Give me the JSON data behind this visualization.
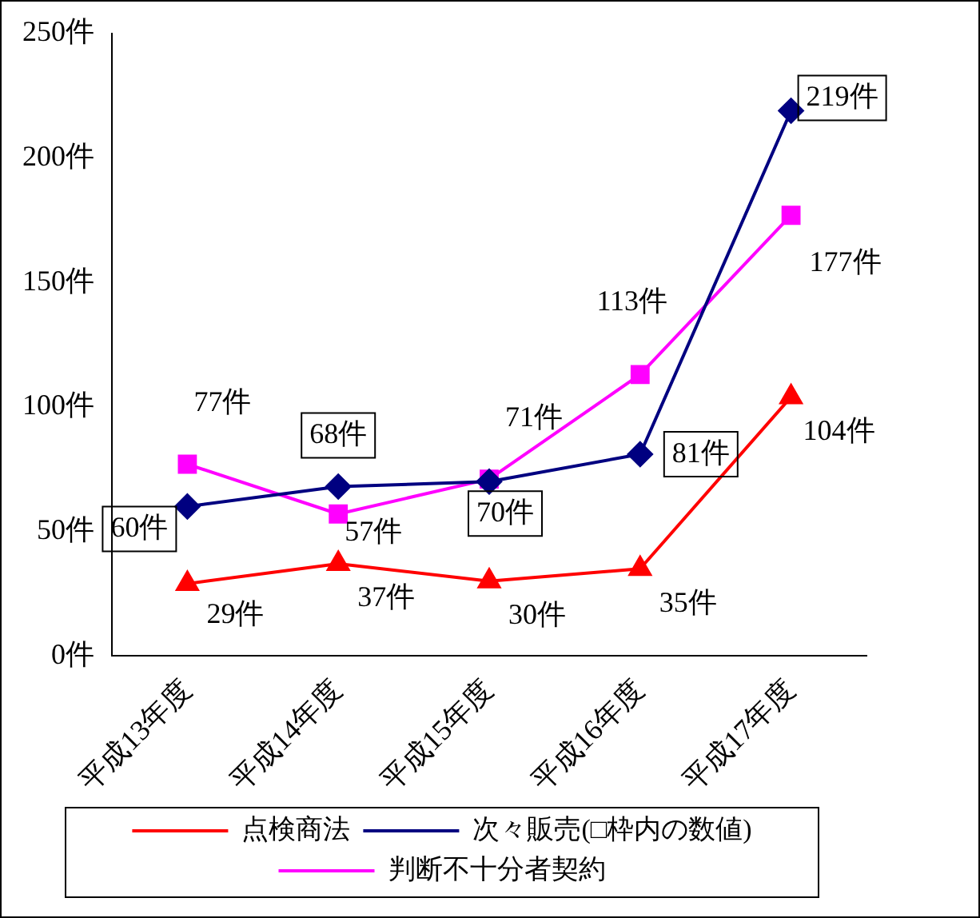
{
  "chart_data": {
    "type": "line",
    "categories": [
      "平成13年度",
      "平成14年度",
      "平成15年度",
      "平成16年度",
      "平成17年度"
    ],
    "series": [
      {
        "name": "点検商法",
        "color": "#ff0000",
        "marker": "triangle",
        "values": [
          29,
          37,
          30,
          35,
          104
        ],
        "value_labels": [
          "29件",
          "37件",
          "30件",
          "35件",
          "104件"
        ]
      },
      {
        "name": "次々販売(□枠内の数値)",
        "color": "#000080",
        "marker": "diamond",
        "values": [
          60,
          68,
          70,
          81,
          219
        ],
        "value_labels": [
          "60件",
          "68件",
          "70件",
          "81件",
          "219件"
        ]
      },
      {
        "name": "判断不十分者契約",
        "color": "#ff00ff",
        "marker": "square",
        "values": [
          77,
          57,
          71,
          113,
          177
        ],
        "value_labels": [
          "77件",
          "57件",
          "71件",
          "113件",
          "177件"
        ]
      }
    ],
    "ylim": [
      0,
      250
    ],
    "yticks": [
      {
        "value": 0,
        "label": "0件"
      },
      {
        "value": 50,
        "label": "50件"
      },
      {
        "value": 100,
        "label": "100件"
      },
      {
        "value": 150,
        "label": "150件"
      },
      {
        "value": 200,
        "label": "200件"
      },
      {
        "value": 250,
        "label": "250件"
      }
    ],
    "grid": false,
    "legend": "bottom"
  }
}
